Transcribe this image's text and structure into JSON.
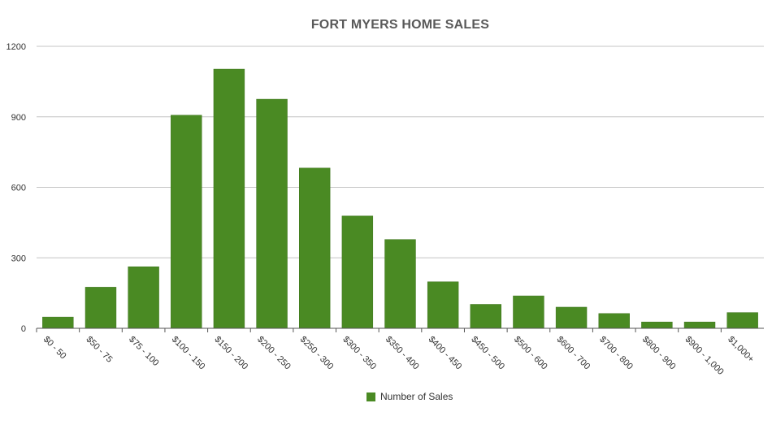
{
  "chart_data": {
    "type": "bar",
    "title": "FORT MYERS HOME SALES",
    "xlabel": "",
    "ylabel": "",
    "categories": [
      "$0 - 50",
      "$50 - 75",
      "$75 - 100",
      "$100 - 150",
      "$150 - 200",
      "$200 - 250",
      "$250 - 300",
      "$300 - 350",
      "$350 - 400",
      "$400 - 450",
      "$450 - 500",
      "$500 - 600",
      "$600 - 700",
      "$700 - 800",
      "$800 - 900",
      "$900 - 1,000",
      "$1,000+"
    ],
    "series": [
      {
        "name": "Number of Sales",
        "values": [
          48,
          175,
          262,
          907,
          1103,
          975,
          682,
          478,
          378,
          198,
          102,
          138,
          90,
          63,
          27,
          27,
          67
        ]
      }
    ],
    "ylim": [
      0,
      1200
    ],
    "yticks": [
      0,
      300,
      600,
      900,
      1200
    ],
    "grid": true,
    "legend_position": "bottom",
    "colors": {
      "bar": "#4a8a23",
      "bar_stroke": "#3d741c",
      "grid": "#c4c4c4",
      "axis": "#555555",
      "text": "#333333"
    }
  }
}
